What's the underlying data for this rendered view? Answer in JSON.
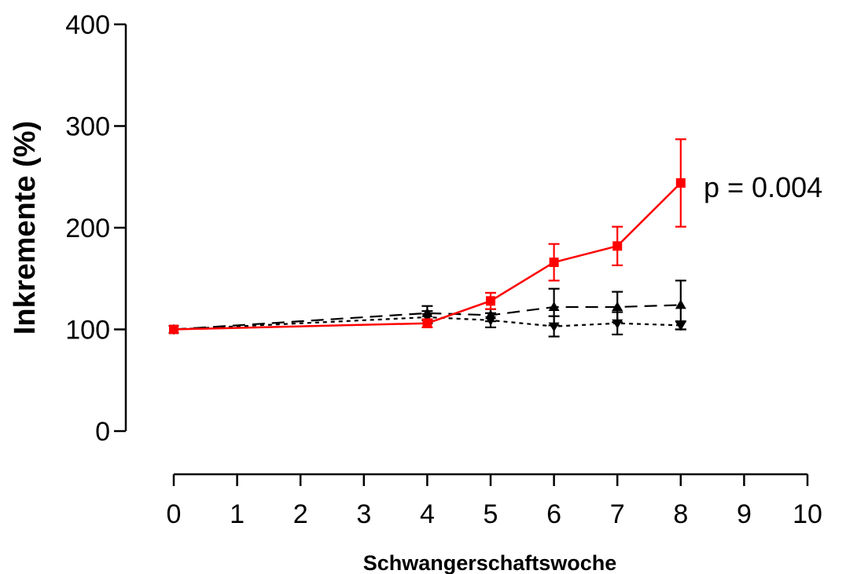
{
  "chart_data": {
    "type": "line",
    "title": "",
    "xlabel": "Schwangerschaftswoche",
    "ylabel": "Inkremente (%)",
    "xlim": [
      0,
      10
    ],
    "ylim": [
      0,
      400
    ],
    "xticks": [
      "0",
      "1",
      "2",
      "3",
      "4",
      "5",
      "6",
      "7",
      "8",
      "9",
      "10"
    ],
    "yticks": [
      "0",
      "100",
      "200",
      "300",
      "400"
    ],
    "grid": false,
    "legend": "none",
    "annotation": "p = 0.004",
    "series": [
      {
        "color": "#ff0000",
        "line_style": "solid",
        "marker": "square",
        "points": [
          {
            "x": 0,
            "y": 100,
            "err": 0
          },
          {
            "x": 4,
            "y": 106,
            "err": 4
          },
          {
            "x": 5,
            "y": 128,
            "err": 8
          },
          {
            "x": 6,
            "y": 166,
            "err": 18
          },
          {
            "x": 7,
            "y": 182,
            "err": 19
          },
          {
            "x": 8,
            "y": 244,
            "err": 43
          }
        ]
      },
      {
        "color": "#000000",
        "line_style": "dashed",
        "marker": "triangle-up",
        "points": [
          {
            "x": 0,
            "y": 100,
            "err": 0
          },
          {
            "x": 4,
            "y": 116,
            "err": 7
          },
          {
            "x": 5,
            "y": 114,
            "err": 6
          },
          {
            "x": 6,
            "y": 122,
            "err": 18
          },
          {
            "x": 7,
            "y": 122,
            "err": 15
          },
          {
            "x": 8,
            "y": 124,
            "err": 24
          }
        ]
      },
      {
        "color": "#000000",
        "line_style": "dotted",
        "marker": "triangle-down",
        "points": [
          {
            "x": 0,
            "y": 100,
            "err": 0
          },
          {
            "x": 4,
            "y": 112,
            "err": 6
          },
          {
            "x": 5,
            "y": 109,
            "err": 7
          },
          {
            "x": 6,
            "y": 103,
            "err": 10
          },
          {
            "x": 7,
            "y": 106,
            "err": 11
          },
          {
            "x": 8,
            "y": 104,
            "err": 4
          }
        ]
      }
    ]
  }
}
